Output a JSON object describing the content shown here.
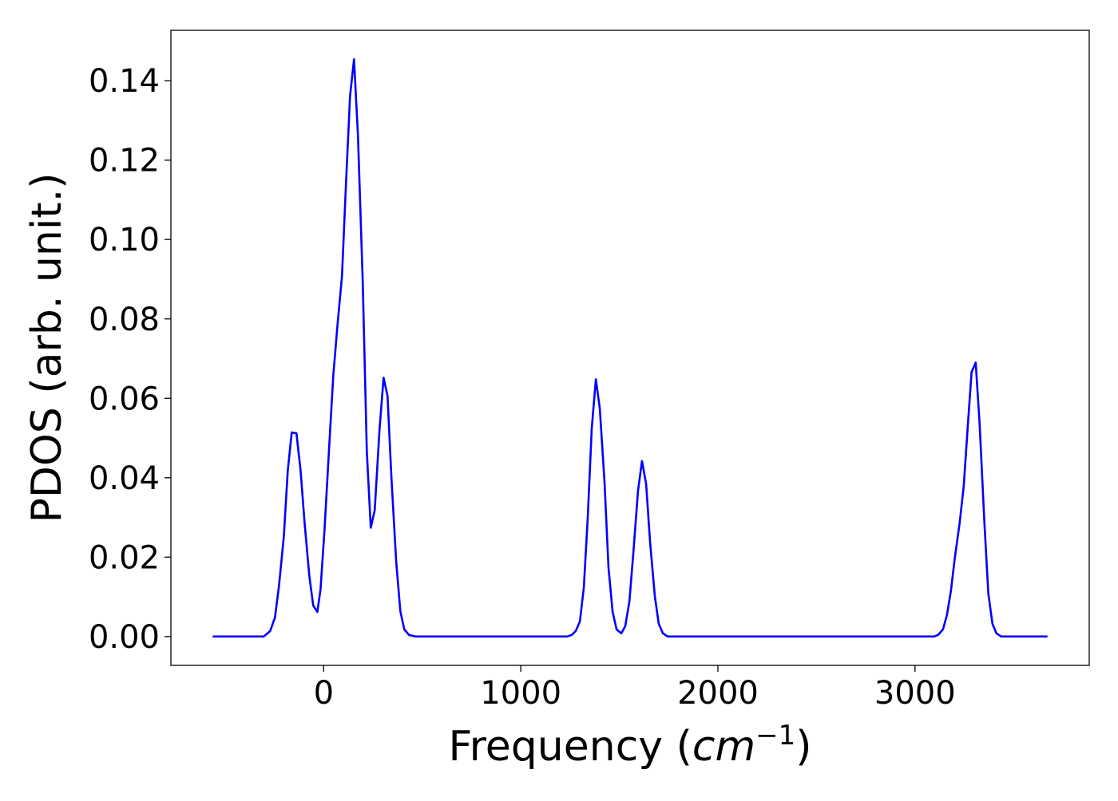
{
  "chart_data": {
    "type": "line",
    "ylabel": "PDOS (arb. unit.)",
    "xlabel": [
      "Frequency (",
      "cm",
      "−1",
      ")"
    ],
    "color": "#0000ff",
    "xlim": [
      -775,
      3884
    ],
    "ylim": [
      -0.00727,
      0.1527
    ],
    "xticks": [
      0,
      1000,
      2000,
      3000
    ],
    "yticks": [
      {
        "value": 0,
        "label": "0.00"
      },
      0.02,
      0.04,
      0.06,
      0.08,
      {
        "value": 0.1,
        "label": "0.10"
      },
      0.12,
      0.14
    ],
    "x": [
      -563,
      -304,
      -271,
      -247,
      -227,
      -202,
      -182,
      -162,
      -138,
      -117,
      -97,
      -73,
      -53,
      -32,
      -16,
      4,
      28,
      49,
      69,
      93,
      113,
      134,
      154,
      174,
      198,
      219,
      239,
      259,
      283,
      304,
      324,
      344,
      368,
      389,
      409,
      433,
      466,
      1235,
      1259,
      1279,
      1300,
      1320,
      1340,
      1360,
      1381,
      1401,
      1425,
      1445,
      1466,
      1486,
      1510,
      1530,
      1551,
      1571,
      1595,
      1615,
      1636,
      1656,
      1680,
      1700,
      1721,
      1745,
      3097,
      3117,
      3142,
      3162,
      3182,
      3202,
      3227,
      3247,
      3267,
      3287,
      3308,
      3328,
      3352,
      3372,
      3393,
      3413,
      3437,
      3672
    ],
    "values": [
      0,
      0,
      0.0014,
      0.0048,
      0.0126,
      0.0252,
      0.0418,
      0.0514,
      0.0512,
      0.0418,
      0.0288,
      0.0154,
      0.0078,
      0.0062,
      0.0118,
      0.0266,
      0.0478,
      0.0658,
      0.0778,
      0.0908,
      0.1138,
      0.1362,
      0.1454,
      0.1262,
      0.0898,
      0.0466,
      0.0274,
      0.0318,
      0.0518,
      0.0652,
      0.0606,
      0.0398,
      0.0188,
      0.0064,
      0.0018,
      0.0004,
      0,
      0,
      0.0004,
      0.0014,
      0.0038,
      0.0124,
      0.0302,
      0.0524,
      0.0648,
      0.0574,
      0.0388,
      0.0174,
      0.0062,
      0.0018,
      0.0008,
      0.0026,
      0.0088,
      0.021,
      0.0368,
      0.0442,
      0.0384,
      0.0238,
      0.0102,
      0.0032,
      0.0008,
      0,
      0,
      0.0004,
      0.0018,
      0.0054,
      0.0114,
      0.0198,
      0.0288,
      0.0378,
      0.0524,
      0.0666,
      0.069,
      0.0534,
      0.0288,
      0.0108,
      0.0032,
      0.0008,
      0,
      0
    ]
  }
}
